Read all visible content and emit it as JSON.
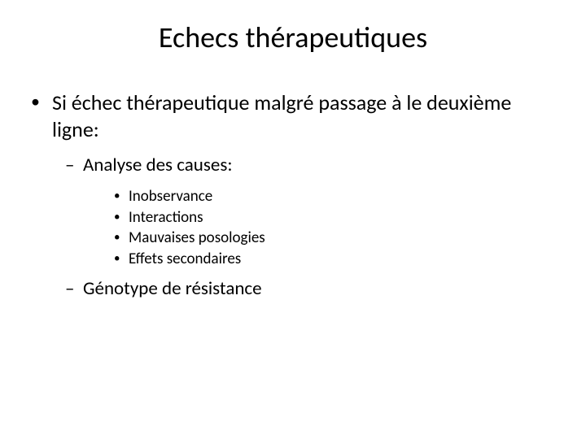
{
  "slide": {
    "title": "Echecs thérapeutiques",
    "background_color": "#ffffff",
    "text_color": "#000000",
    "title_fontsize": 36,
    "body": {
      "level1_fontsize": 26,
      "level2_fontsize": 23,
      "level3_fontsize": 19,
      "item1": "Si échec thérapeutique malgré passage à le deuxième ligne:",
      "sub1": "Analyse des causes:",
      "causes": {
        "c1": "Inobservance",
        "c2": "Interactions",
        "c3": "Mauvaises posologies",
        "c4": "Effets secondaires"
      },
      "sub2": "Génotype de résistance"
    }
  }
}
